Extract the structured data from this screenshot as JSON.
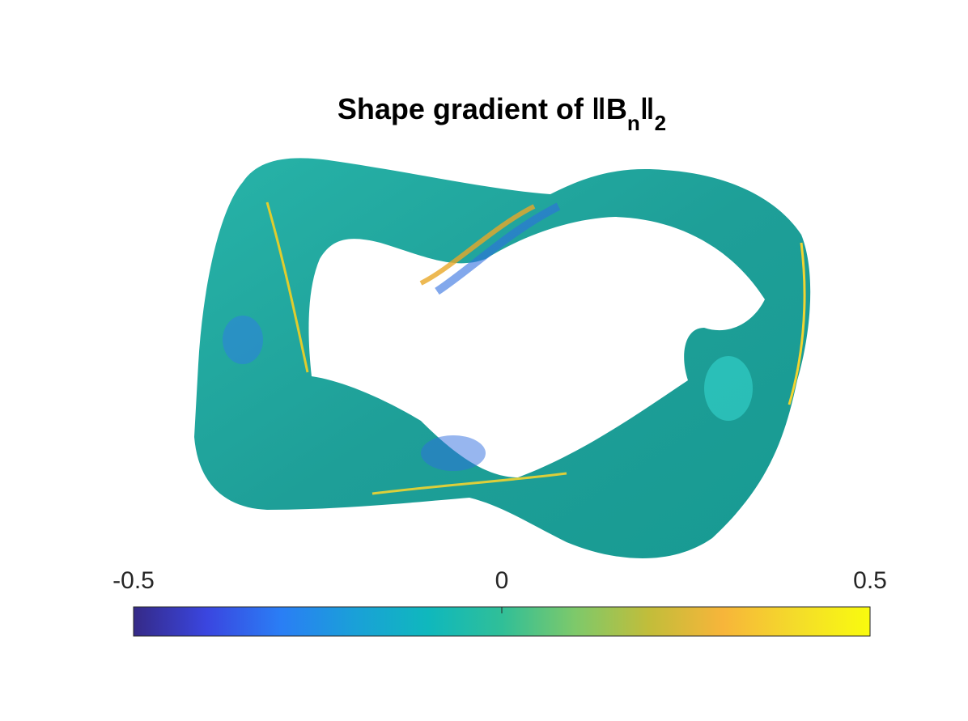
{
  "chart_data": {
    "type": "surface",
    "title": [
      {
        "text": "Shape gradient of ‖B"
      },
      {
        "sub": "n"
      },
      {
        "text": "‖"
      },
      {
        "sub": "2"
      }
    ],
    "colorbar": {
      "clim": [
        -0.5,
        0.5
      ],
      "ticks": [
        -0.5,
        0,
        0.5
      ],
      "colormap": [
        "#352a87",
        "#3a46e0",
        "#2a7ef5",
        "#1aa0d8",
        "#0fb8bd",
        "#30bf98",
        "#7ec96a",
        "#c2bd3a",
        "#f7b53a",
        "#f4dc2a",
        "#f9fb0e"
      ]
    }
  }
}
